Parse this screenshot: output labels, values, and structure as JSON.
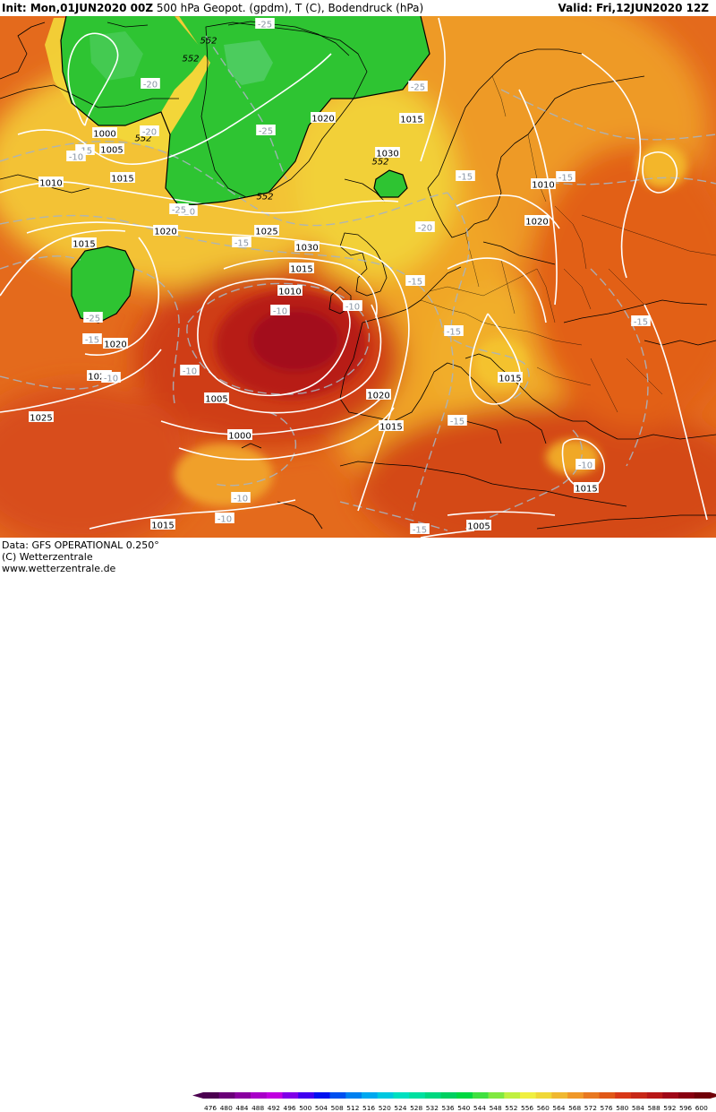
{
  "header": {
    "init": "Init: Mon,01JUN2020 00Z",
    "fields": "500 hPa Geopot. (gpdm), T (C), Bodendruck (hPa)",
    "valid": "Valid: Fri,12JUN2020 12Z"
  },
  "footer": {
    "data_source": "Data: GFS OPERATIONAL 0.250°",
    "copyright": "(C) Wetterzentrale",
    "website": "www.wetterzentrale.de"
  },
  "colorbar": {
    "labels": [
      "476",
      "480",
      "484",
      "488",
      "492",
      "496",
      "500",
      "504",
      "508",
      "512",
      "516",
      "520",
      "524",
      "528",
      "532",
      "536",
      "540",
      "544",
      "548",
      "552",
      "556",
      "560",
      "564",
      "568",
      "572",
      "576",
      "580",
      "584",
      "588",
      "592",
      "596",
      "600"
    ],
    "colors": [
      "#4b0050",
      "#6a0078",
      "#8a00a0",
      "#a800c8",
      "#c000e0",
      "#8000e8",
      "#4000f0",
      "#0010f0",
      "#0050f0",
      "#0080f0",
      "#00a8f0",
      "#00c8e0",
      "#00e0c0",
      "#00e0a0",
      "#00d880",
      "#00d060",
      "#00d840",
      "#40e040",
      "#80e840",
      "#c0f040",
      "#f0f040",
      "#f0d838",
      "#f0b830",
      "#f09828",
      "#e87820",
      "#e05818",
      "#d83818",
      "#c82818",
      "#b81818",
      "#a00818",
      "#880010",
      "#700008"
    ]
  },
  "map": {
    "isobars": [
      "1000",
      "1005",
      "1010",
      "1015",
      "1020",
      "1025",
      "1030",
      "1015",
      "1010",
      "1005",
      "1000",
      "1015",
      "1020",
      "1015",
      "1020",
      "1025",
      "1030",
      "1020",
      "1015",
      "1020",
      "1015",
      "1020",
      "1010",
      "1015",
      "1005",
      "1015",
      "1010",
      "1010",
      "1010",
      "1015",
      "1020",
      "1005",
      "1000",
      "1015",
      "1030"
    ],
    "geopotential": [
      "552",
      "552",
      "552",
      "552",
      "552"
    ],
    "temperatures": [
      "-25",
      "-20",
      "-20",
      "-25",
      "-25",
      "-25",
      "-20",
      "-15",
      "-10",
      "-25",
      "-20",
      "-15",
      "-15",
      "-10",
      "-10",
      "-10",
      "-10",
      "-15",
      "-15",
      "-15",
      "-15",
      "-15",
      "-10",
      "-10",
      "-15",
      "-15",
      "-10",
      "-10",
      "-10",
      "-15"
    ]
  }
}
